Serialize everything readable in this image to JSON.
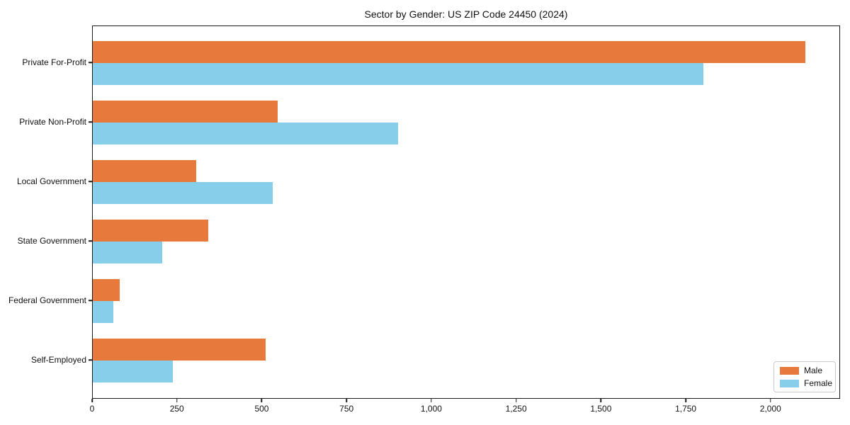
{
  "title": "Sector by Gender: US ZIP Code 24450 (2024)",
  "chart_data": {
    "type": "bar",
    "orientation": "horizontal",
    "title": "Sector by Gender: US ZIP Code 24450 (2024)",
    "xlabel": "",
    "ylabel": "",
    "categories": [
      "Private For-Profit",
      "Private Non-Profit",
      "Local Government",
      "State Government",
      "Federal Government",
      "Self-Employed"
    ],
    "series": [
      {
        "name": "Male",
        "color": "#e8793c",
        "values": [
          2100,
          545,
          305,
          340,
          80,
          510
        ]
      },
      {
        "name": "Female",
        "color": "#87ceeb",
        "values": [
          1800,
          900,
          530,
          205,
          60,
          235
        ]
      }
    ],
    "xlim": [
      0,
      2205
    ],
    "x_ticks": [
      0,
      250,
      500,
      750,
      1000,
      1250,
      1500,
      1750,
      2000
    ],
    "x_tick_labels": [
      "0",
      "250",
      "500",
      "750",
      "1,000",
      "1,250",
      "1,500",
      "1,750",
      "2,000"
    ],
    "grid": false,
    "legend_position": "lower right",
    "axis_color": "#1a1a1a"
  }
}
